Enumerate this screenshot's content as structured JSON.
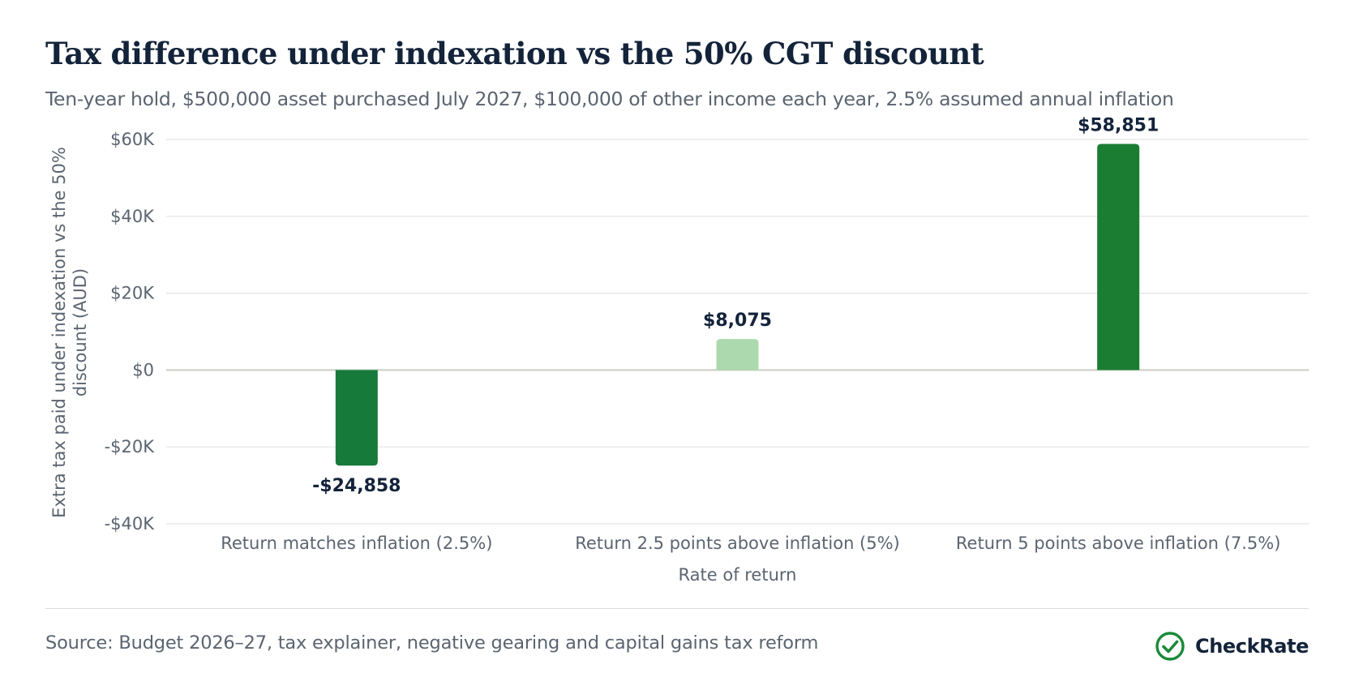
{
  "title": "Tax difference under indexation vs the 50% CGT discount",
  "subtitle": "Ten-year hold, $500,000 asset purchased July 2027, $100,000 of other income each year, 2.5% assumed annual inflation",
  "source": "Source: Budget 2026–27, tax explainer, negative gearing and capital gains tax reform",
  "brand": {
    "name": "CheckRate",
    "icon": "check-circle-icon",
    "color": "#1a8a3a"
  },
  "chart_data": {
    "type": "bar",
    "categories": [
      "Return matches inflation (2.5%)",
      "Return 2.5 points above inflation (5%)",
      "Return 5 points above inflation (7.5%)"
    ],
    "values": [
      -24858,
      8075,
      58851
    ],
    "data_labels": [
      "-$24,858",
      "$8,075",
      "$58,851"
    ],
    "bar_colors": [
      "#167a3a",
      "#acd9ad",
      "#1a7d32"
    ],
    "xlabel": "Rate of return",
    "ylabel": "Extra tax paid under indexation vs the 50% discount (AUD)",
    "ylabel_lines": [
      "Extra tax paid under indexation vs the 50%",
      "discount (AUD)"
    ],
    "ylim": [
      -40000,
      60000
    ],
    "yticks": [
      60000,
      40000,
      20000,
      0,
      -20000,
      -40000
    ],
    "ytick_labels": [
      "$60K",
      "$40K",
      "$20K",
      "$0",
      "-$20K",
      "-$40K"
    ],
    "grid": true,
    "legend": "none"
  }
}
